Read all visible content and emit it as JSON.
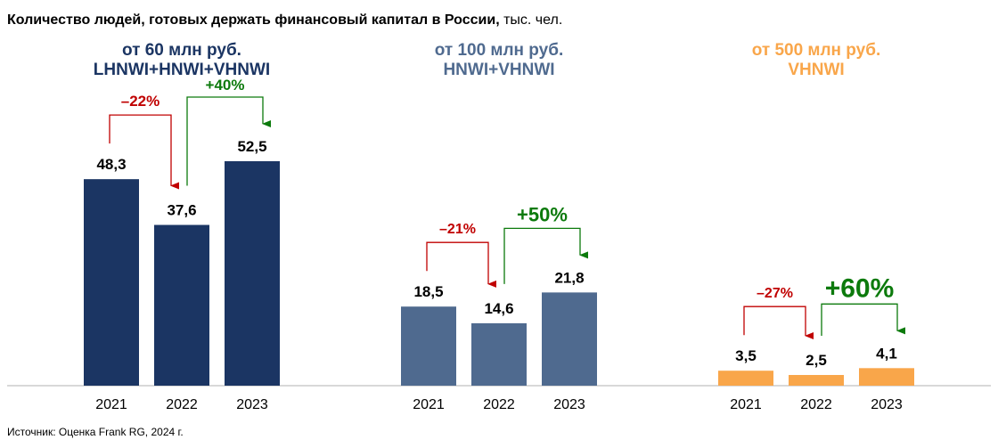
{
  "title": {
    "main": "Количество людей, готовых держать финансовый капитал в России,",
    "unit": " тыс. чел."
  },
  "source": "Источник: Оценка Frank RG, 2024 г.",
  "colors": {
    "navy": "#1b3563",
    "slate": "#4f6a8f",
    "orange": "#f9a64a",
    "decrease": "#c00000",
    "increase": "#0c7a0c",
    "axis": "#b0b0b0"
  },
  "chart_data": [
    {
      "type": "bar",
      "title": "от 60 млн руб.",
      "subtitle": "LHNWI+HNWI+VHNWI",
      "color": "#1b3563",
      "categories": [
        "2021",
        "2022",
        "2023"
      ],
      "values": [
        48.3,
        37.6,
        52.5
      ],
      "value_labels": [
        "48,3",
        "37,6",
        "52,5"
      ],
      "changes": [
        {
          "from": "2021",
          "to": "2022",
          "label": "–22%",
          "direction": "down"
        },
        {
          "from": "2022",
          "to": "2023",
          "label": "+40%",
          "direction": "up"
        }
      ]
    },
    {
      "type": "bar",
      "title": "от 100 млн руб.",
      "subtitle": "HNWI+VHNWI",
      "color": "#4f6a8f",
      "categories": [
        "2021",
        "2022",
        "2023"
      ],
      "values": [
        18.5,
        14.6,
        21.8
      ],
      "value_labels": [
        "18,5",
        "14,6",
        "21,8"
      ],
      "changes": [
        {
          "from": "2021",
          "to": "2022",
          "label": "–21%",
          "direction": "down"
        },
        {
          "from": "2022",
          "to": "2023",
          "label": "+50%",
          "direction": "up"
        }
      ]
    },
    {
      "type": "bar",
      "title": "от 500 млн руб.",
      "subtitle": "VHNWI",
      "color": "#f9a64a",
      "categories": [
        "2021",
        "2022",
        "2023"
      ],
      "values": [
        3.5,
        2.5,
        4.1
      ],
      "value_labels": [
        "3,5",
        "2,5",
        "4,1"
      ],
      "changes": [
        {
          "from": "2021",
          "to": "2022",
          "label": "–27%",
          "direction": "down"
        },
        {
          "from": "2022",
          "to": "2023",
          "label": "+60%",
          "direction": "up"
        }
      ]
    }
  ]
}
